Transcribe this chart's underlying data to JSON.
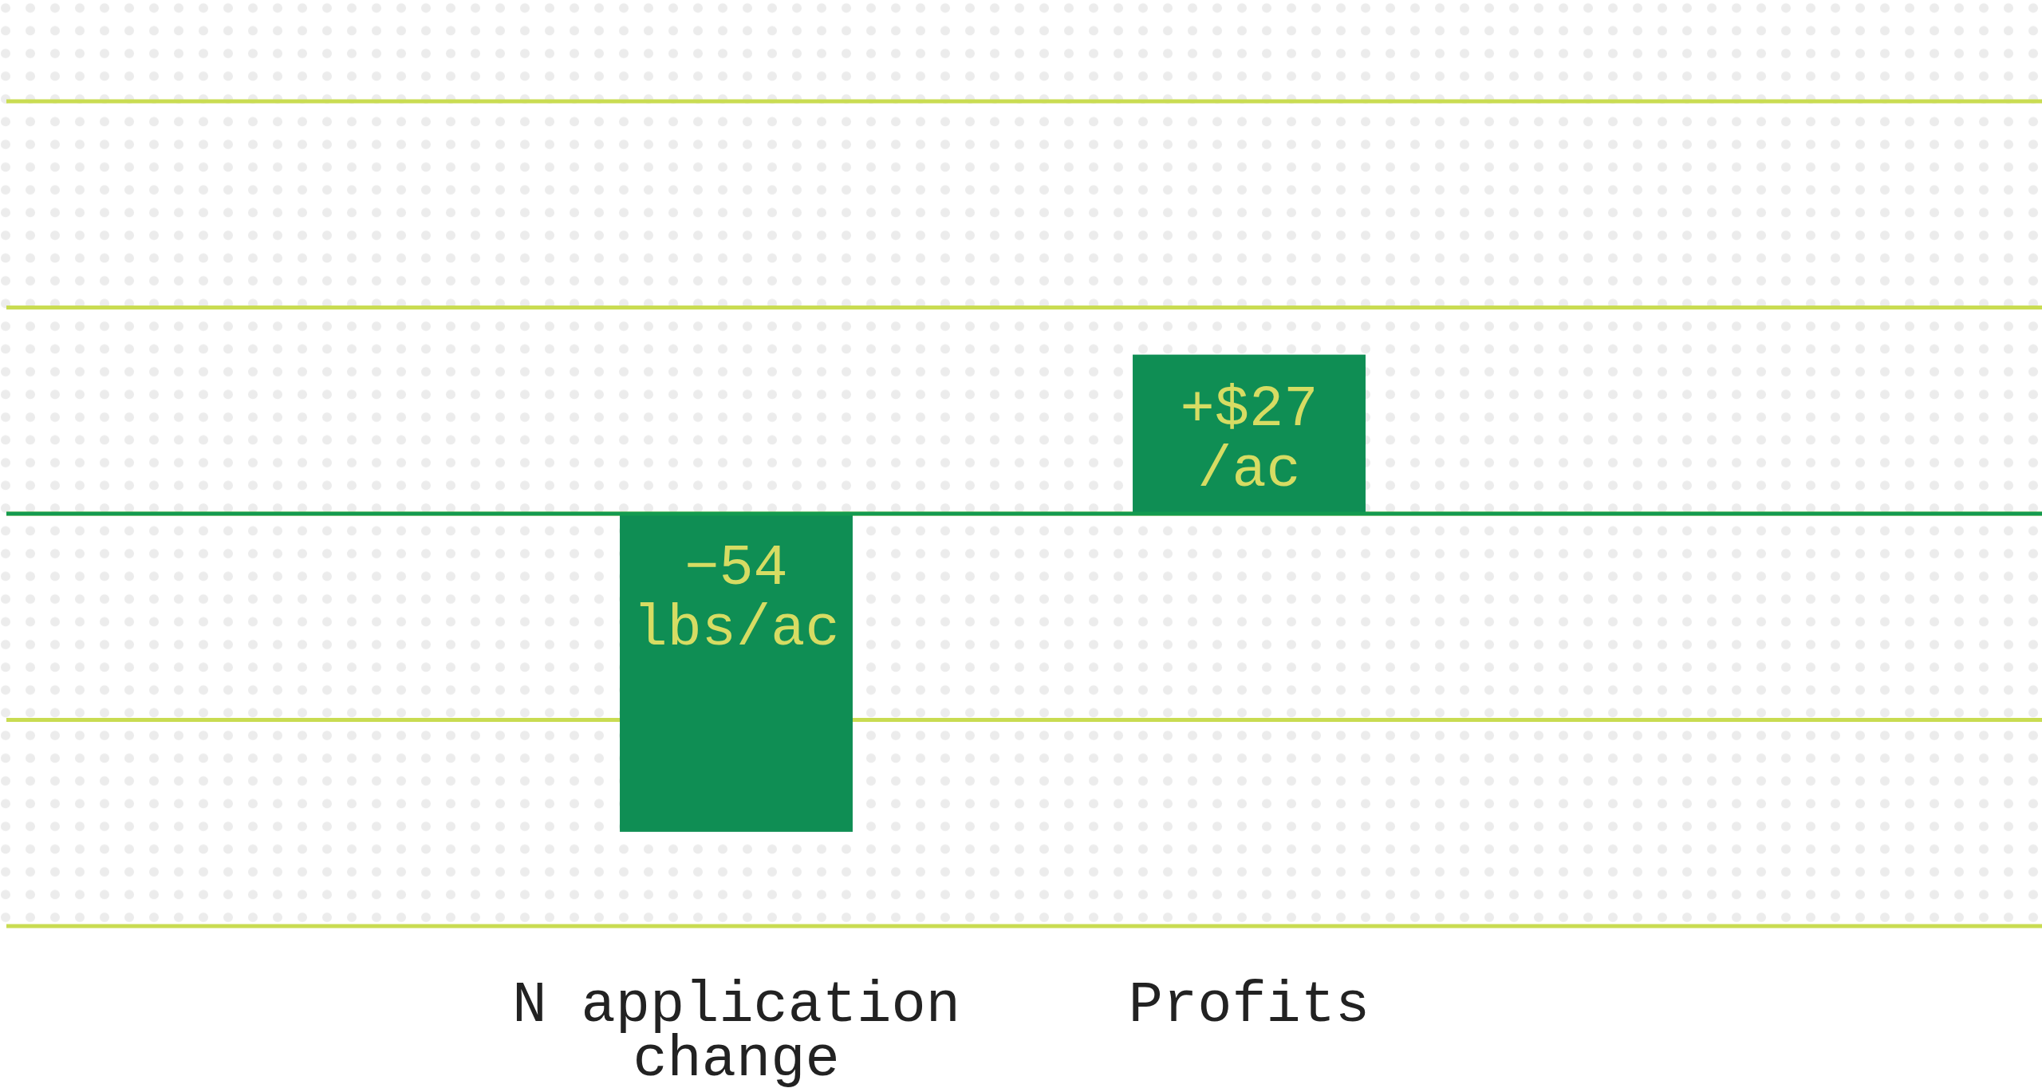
{
  "chart_data": {
    "type": "bar",
    "categories": [
      "N application change",
      "Profits"
    ],
    "values": [
      -54,
      27
    ],
    "value_labels": [
      "−54 lbs/ac",
      "+$27/ac"
    ],
    "color": "#0f8e54",
    "ylim": [
      -70,
      70
    ],
    "yticks": [
      {
        "value": -70,
        "label": null
      },
      {
        "value": -35,
        "label": null
      },
      {
        "value": 0,
        "label": null
      },
      {
        "value": 35,
        "label": null
      },
      {
        "value": 70,
        "label": null
      }
    ],
    "tick_labels": "x",
    "ref_lines": [
      {
        "axis": "y",
        "value": 0,
        "color": "#139a50"
      }
    ],
    "grid": "y"
  }
}
